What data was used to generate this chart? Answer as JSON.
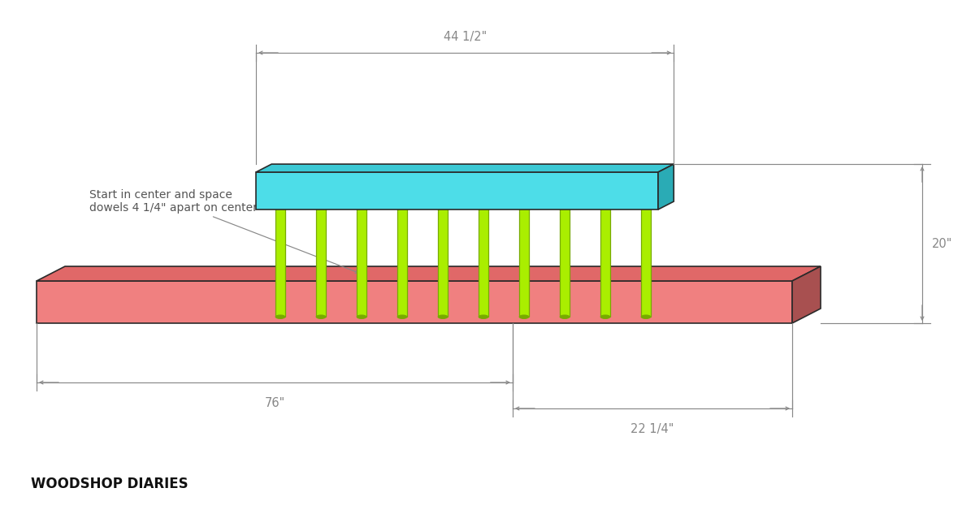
{
  "background_color": "#ffffff",
  "watermark": "WOODSHOP DIARIES",
  "watermark_fontsize": 12,
  "top_rail": {
    "face_color": "#4DDDE8",
    "side_color": "#2AABB5",
    "top_color": "#3BC8D4",
    "edge_color": "#2a2a2a",
    "lw": 1.2
  },
  "bottom_rail": {
    "face_color": "#F08080",
    "side_color": "#A85050",
    "top_color": "#E06868",
    "edge_color": "#2a2a2a",
    "lw": 1.2
  },
  "dowel_color": "#AAEE00",
  "dowel_edge_color": "#77AA00",
  "dowel_count": 10,
  "dim_color": "#888888",
  "dim_fontsize": 10.5,
  "ann_fontsize": 10,
  "ann_color": "#555555"
}
